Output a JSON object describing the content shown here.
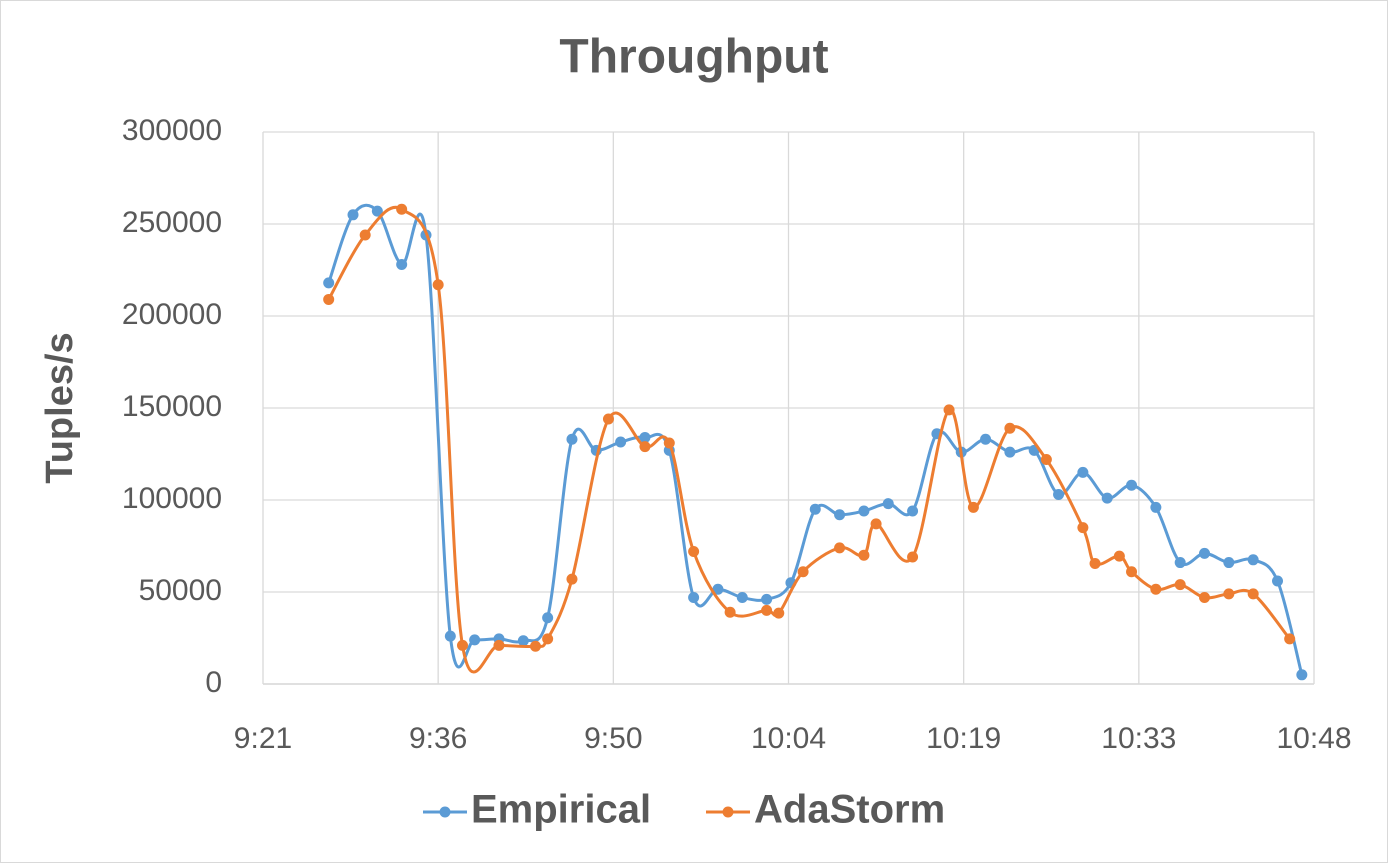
{
  "chart_data": {
    "type": "line",
    "title": "Throughput",
    "y_label": "Tuples/s",
    "xlim": [
      561.6,
      648
    ],
    "xticks": [
      {
        "value": 561.6,
        "label": "9:21"
      },
      {
        "value": 576,
        "label": "9:36"
      },
      {
        "value": 590.4,
        "label": "9:50"
      },
      {
        "value": 604.8,
        "label": "10:04"
      },
      {
        "value": 619.2,
        "label": "10:19"
      },
      {
        "value": 633.6,
        "label": "10:33"
      },
      {
        "value": 648,
        "label": "10:48"
      }
    ],
    "ylim": [
      0,
      300000
    ],
    "yticks": [
      0,
      50000,
      100000,
      150000,
      200000,
      250000,
      300000
    ],
    "grid": true,
    "smooth": true,
    "legend": "bottom",
    "series": [
      {
        "name": "Empirical",
        "color": "#5b9bd5",
        "x": [
          567,
          569,
          571,
          573,
          575,
          577,
          579,
          581,
          583,
          585,
          587,
          589,
          591,
          593,
          595,
          597,
          599,
          601,
          603,
          605,
          607,
          609,
          611,
          613,
          615,
          617,
          619,
          621,
          623,
          625,
          627,
          629,
          631,
          633,
          635,
          637,
          639,
          641,
          643,
          645,
          647
        ],
        "values": [
          218000,
          255000,
          257000,
          228000,
          244000,
          26000,
          24000,
          24500,
          23500,
          36000,
          133000,
          127000,
          131500,
          134000,
          127000,
          47000,
          51500,
          47000,
          46000,
          55000,
          95000,
          92000,
          94000,
          98000,
          94000,
          136000,
          126000,
          133000,
          126000,
          127000,
          103000,
          115000,
          101000,
          108000,
          96000,
          66000,
          71000,
          66000,
          67500,
          56000,
          5000
        ]
      },
      {
        "name": "AdaStorm",
        "color": "#ed7d31",
        "x": [
          567,
          570,
          573,
          576,
          578,
          581,
          584,
          585,
          587,
          590,
          593,
          595,
          597,
          600,
          603,
          604,
          606,
          609,
          611,
          612,
          615,
          618,
          620,
          623,
          626,
          629,
          630,
          632,
          633,
          635,
          637,
          639,
          641,
          643,
          646
        ],
        "values": [
          209000,
          244000,
          258000,
          217000,
          21000,
          21000,
          20500,
          24500,
          57000,
          144000,
          129000,
          131000,
          72000,
          39000,
          40000,
          38500,
          61000,
          74000,
          70000,
          87000,
          69000,
          149000,
          96000,
          139000,
          122000,
          85000,
          65500,
          69500,
          61000,
          51500,
          54000,
          47000,
          49000,
          49000,
          24500
        ]
      }
    ]
  }
}
